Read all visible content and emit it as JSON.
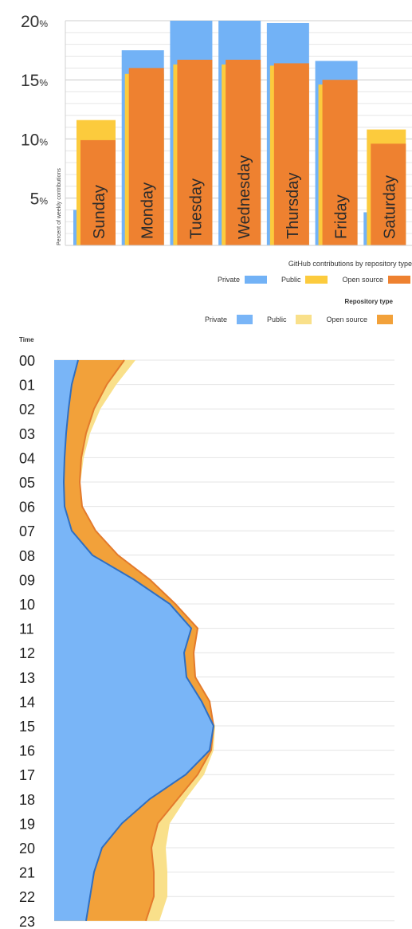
{
  "chart_data": [
    {
      "type": "bar",
      "title": "",
      "ylabel": "Percent of weekly contributions",
      "ylim": [
        1,
        20
      ],
      "yticks": [
        5,
        10,
        15,
        20
      ],
      "ytick_suffix": "%",
      "grid": true,
      "legend_title": "GitHub contributions by repository type",
      "legend_position": "bottom-right",
      "categories": [
        "Sunday",
        "Monday",
        "Tuesday",
        "Wednesday",
        "Thursday",
        "Friday",
        "Saturday"
      ],
      "series": [
        {
          "name": "Private",
          "color": "#72B2F6",
          "values": [
            4.0,
            17.5,
            20.0,
            20.0,
            19.8,
            16.6,
            3.8
          ]
        },
        {
          "name": "Public",
          "color": "#FCCB3D",
          "values": [
            11.6,
            15.5,
            16.3,
            16.3,
            16.2,
            14.6,
            10.8
          ]
        },
        {
          "name": "Open source",
          "color": "#EE8130",
          "values": [
            9.9,
            16.0,
            16.7,
            16.7,
            16.4,
            15.0,
            9.6
          ]
        }
      ]
    },
    {
      "type": "area",
      "title": "",
      "legend_title": "Repository type",
      "legend_position": "top-right",
      "ylabel": "Time",
      "categories": [
        "00",
        "01",
        "02",
        "03",
        "04",
        "05",
        "06",
        "07",
        "08",
        "09",
        "10",
        "11",
        "12",
        "13",
        "14",
        "15",
        "16",
        "17",
        "18",
        "19",
        "20",
        "21",
        "22",
        "23"
      ],
      "series": [
        {
          "name": "Private",
          "color": "#79B5F7",
          "values": [
            30,
            22,
            18,
            15,
            13,
            12,
            13,
            22,
            48,
            100,
            145,
            172,
            163,
            166,
            185,
            200,
            195,
            165,
            120,
            85,
            60,
            50,
            45,
            40
          ]
        },
        {
          "name": "Public",
          "color": "#F9E08A",
          "values": [
            102,
            78,
            58,
            45,
            37,
            33,
            33,
            42,
            65,
            108,
            148,
            175,
            168,
            170,
            188,
            202,
            200,
            188,
            165,
            145,
            140,
            142,
            142,
            132
          ]
        },
        {
          "name": "Open source",
          "color": "#F2A13A",
          "values": [
            88,
            66,
            50,
            40,
            34,
            32,
            35,
            52,
            80,
            120,
            152,
            180,
            175,
            177,
            195,
            200,
            197,
            180,
            155,
            130,
            122,
            125,
            125,
            115
          ]
        }
      ]
    }
  ]
}
